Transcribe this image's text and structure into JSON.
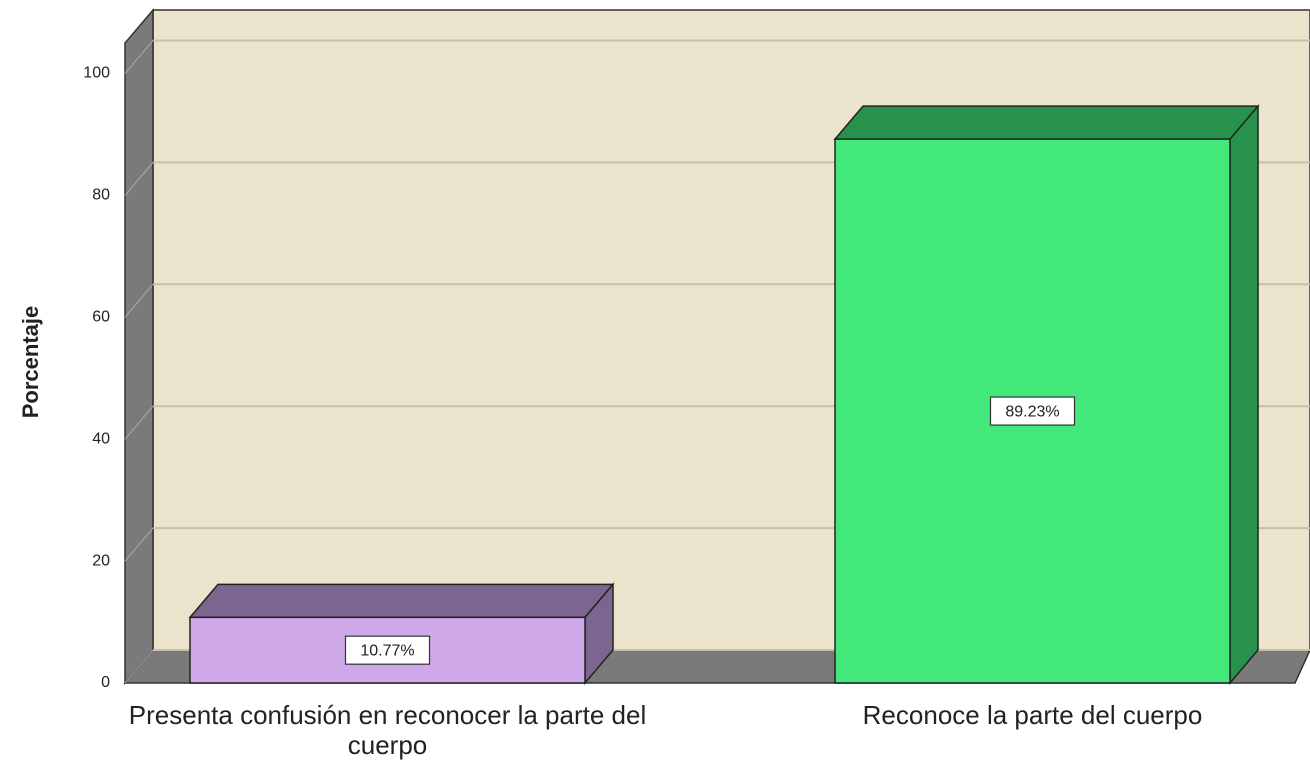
{
  "chart_data": {
    "type": "bar3d",
    "y_label": "Porcentaje",
    "categories": [
      "Presenta confusión en reconocer la parte del cuerpo",
      "Reconoce la parte del cuerpo"
    ],
    "values": [
      10.77,
      89.23
    ],
    "value_labels": [
      "10.77%",
      "89.23%"
    ],
    "colors": [
      "#cfa8ea",
      "#42e87a"
    ],
    "shade_colors": [
      "#7c6690",
      "#26924b"
    ],
    "wall_color": "#ece3cd",
    "ylim": [
      0,
      105
    ],
    "yticks": [
      0,
      20,
      40,
      60,
      80,
      100
    ],
    "grid": true
  }
}
